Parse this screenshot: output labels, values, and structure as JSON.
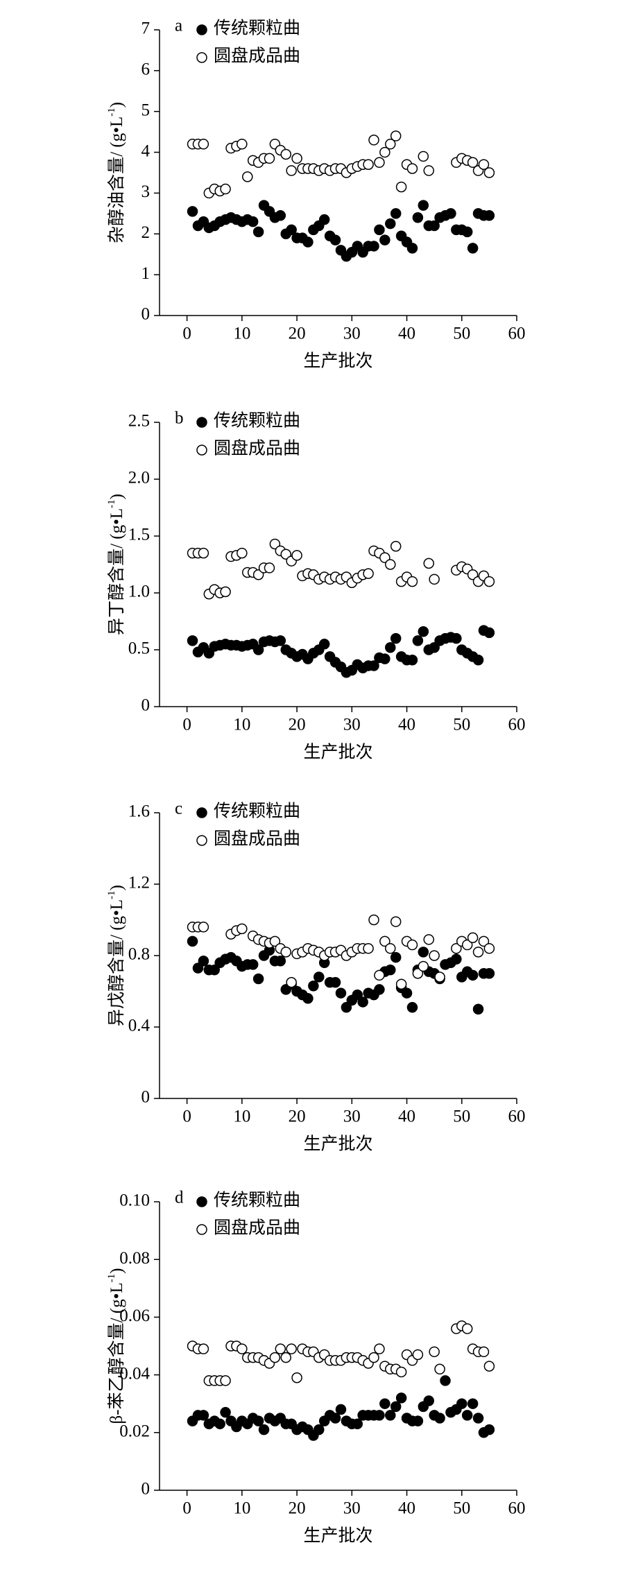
{
  "chart_data": [
    {
      "type": "scatter",
      "label": "a",
      "xlabel": "生产批次",
      "ylabel": [
        "杂醇油含量/ (g•L",
        "-1",
        ")"
      ],
      "xlim": [
        -5,
        60
      ],
      "xticks": [
        0,
        10,
        20,
        30,
        40,
        50,
        60
      ],
      "ylim": [
        0,
        7
      ],
      "yticks": [
        0,
        1,
        2,
        3,
        4,
        5,
        6,
        7
      ],
      "x": [
        1,
        2,
        3,
        4,
        5,
        6,
        7,
        8,
        9,
        10,
        11,
        12,
        13,
        14,
        15,
        16,
        17,
        18,
        19,
        20,
        21,
        22,
        23,
        24,
        25,
        26,
        27,
        28,
        29,
        30,
        31,
        32,
        33,
        34,
        35,
        36,
        37,
        38,
        39,
        40,
        41,
        42,
        43,
        44,
        45,
        46,
        47,
        48,
        49,
        50,
        51,
        52,
        53,
        54,
        55
      ],
      "series": [
        {
          "name": "传统颗粒曲",
          "color": "#000000",
          "marker": "filled",
          "values": [
            2.55,
            2.2,
            2.3,
            2.15,
            2.2,
            2.3,
            2.35,
            2.4,
            2.35,
            2.3,
            2.35,
            2.3,
            2.05,
            2.7,
            2.55,
            2.4,
            2.45,
            2.0,
            2.1,
            1.9,
            1.9,
            1.8,
            2.1,
            2.2,
            2.35,
            1.95,
            1.85,
            1.6,
            1.45,
            1.55,
            1.7,
            1.55,
            1.7,
            1.7,
            2.1,
            1.85,
            2.25,
            2.5,
            1.95,
            1.8,
            1.65,
            2.4,
            2.7,
            2.2,
            2.2,
            2.4,
            2.45,
            2.5,
            2.1,
            2.1,
            2.05,
            1.65,
            2.5,
            2.45,
            2.45
          ]
        },
        {
          "name": "圆盘成品曲",
          "color": "#000000",
          "marker": "open",
          "values": [
            4.2,
            4.2,
            4.2,
            3.0,
            3.1,
            3.05,
            3.1,
            4.1,
            4.15,
            4.2,
            3.4,
            3.8,
            3.75,
            3.85,
            3.85,
            4.2,
            4.05,
            3.95,
            3.55,
            3.85,
            3.6,
            3.6,
            3.6,
            3.55,
            3.6,
            3.55,
            3.6,
            3.6,
            3.5,
            3.6,
            3.65,
            3.7,
            3.7,
            4.3,
            3.75,
            4.0,
            4.2,
            4.4,
            3.15,
            3.7,
            3.6,
            null,
            3.9,
            3.55,
            null,
            null,
            null,
            null,
            3.75,
            3.85,
            3.8,
            3.75,
            3.55,
            3.7,
            3.5
          ]
        }
      ]
    },
    {
      "type": "scatter",
      "label": "b",
      "xlabel": "生产批次",
      "ylabel": [
        "异丁醇含量/ (g•L",
        "-1",
        ")"
      ],
      "xlim": [
        -5,
        60
      ],
      "xticks": [
        0,
        10,
        20,
        30,
        40,
        50,
        60
      ],
      "ylim": [
        0,
        2.5
      ],
      "yticks": [
        0,
        0.5,
        {
          "value": 1,
          "label": "1.0"
        },
        1.5,
        {
          "value": 2,
          "label": "2.0"
        },
        2.5
      ],
      "x": [
        1,
        2,
        3,
        4,
        5,
        6,
        7,
        8,
        9,
        10,
        11,
        12,
        13,
        14,
        15,
        16,
        17,
        18,
        19,
        20,
        21,
        22,
        23,
        24,
        25,
        26,
        27,
        28,
        29,
        30,
        31,
        32,
        33,
        34,
        35,
        36,
        37,
        38,
        39,
        40,
        41,
        42,
        43,
        44,
        45,
        46,
        47,
        48,
        49,
        50,
        51,
        52,
        53,
        54,
        55
      ],
      "series": [
        {
          "name": "传统颗粒曲",
          "color": "#000000",
          "marker": "filled",
          "values": [
            0.58,
            0.48,
            0.52,
            0.47,
            0.53,
            0.54,
            0.55,
            0.54,
            0.54,
            0.53,
            0.54,
            0.55,
            0.5,
            0.57,
            0.58,
            0.57,
            0.58,
            0.5,
            0.47,
            0.44,
            0.46,
            0.42,
            0.47,
            0.5,
            0.55,
            0.44,
            0.39,
            0.35,
            0.3,
            0.32,
            0.37,
            0.34,
            0.36,
            0.36,
            0.43,
            0.42,
            0.52,
            0.6,
            0.44,
            0.41,
            0.41,
            0.58,
            0.66,
            0.5,
            0.52,
            0.58,
            0.6,
            0.61,
            0.6,
            0.5,
            0.47,
            0.44,
            0.41,
            0.67,
            0.65
          ]
        },
        {
          "name": "圆盘成品曲",
          "color": "#000000",
          "marker": "open",
          "values": [
            1.35,
            1.35,
            1.35,
            0.99,
            1.03,
            1.0,
            1.01,
            1.32,
            1.33,
            1.35,
            1.18,
            1.18,
            1.16,
            1.22,
            1.22,
            1.43,
            1.37,
            1.34,
            1.28,
            1.33,
            1.15,
            1.17,
            1.16,
            1.12,
            1.14,
            1.12,
            1.14,
            1.12,
            1.14,
            1.09,
            1.13,
            1.16,
            1.17,
            1.37,
            1.35,
            1.31,
            1.25,
            1.41,
            1.1,
            1.14,
            1.1,
            null,
            null,
            1.26,
            1.12,
            null,
            null,
            null,
            1.2,
            1.23,
            1.21,
            1.16,
            1.1,
            1.15,
            1.1
          ]
        }
      ]
    },
    {
      "type": "scatter",
      "label": "c",
      "xlabel": "生产批次",
      "ylabel": [
        "异戊醇含量/ (g•L",
        "-1",
        ")"
      ],
      "xlim": [
        -5,
        60
      ],
      "xticks": [
        0,
        10,
        20,
        30,
        40,
        50,
        60
      ],
      "ylim": [
        0,
        1.6
      ],
      "yticks": [
        0,
        0.4,
        0.8,
        1.2,
        1.6
      ],
      "x": [
        1,
        2,
        3,
        4,
        5,
        6,
        7,
        8,
        9,
        10,
        11,
        12,
        13,
        14,
        15,
        16,
        17,
        18,
        19,
        20,
        21,
        22,
        23,
        24,
        25,
        26,
        27,
        28,
        29,
        30,
        31,
        32,
        33,
        34,
        35,
        36,
        37,
        38,
        39,
        40,
        41,
        42,
        43,
        44,
        45,
        46,
        47,
        48,
        49,
        50,
        51,
        52,
        53,
        54,
        55
      ],
      "series": [
        {
          "name": "传统颗粒曲",
          "color": "#000000",
          "marker": "filled",
          "values": [
            0.88,
            0.73,
            0.77,
            0.72,
            0.72,
            0.76,
            0.78,
            0.79,
            0.77,
            0.74,
            0.75,
            0.75,
            0.67,
            0.8,
            0.83,
            0.77,
            0.77,
            0.61,
            0.64,
            0.6,
            0.58,
            0.56,
            0.63,
            0.68,
            0.76,
            0.65,
            0.65,
            0.59,
            0.51,
            0.55,
            0.58,
            0.54,
            0.59,
            0.58,
            0.61,
            0.71,
            0.72,
            0.79,
            0.62,
            0.59,
            0.51,
            0.72,
            0.82,
            0.71,
            0.7,
            0.67,
            0.75,
            0.76,
            0.78,
            0.68,
            0.71,
            0.69,
            0.5,
            0.7,
            0.7
          ]
        },
        {
          "name": "圆盘成品曲",
          "color": "#000000",
          "marker": "open",
          "values": [
            0.96,
            0.96,
            0.96,
            null,
            null,
            null,
            null,
            0.92,
            0.94,
            0.95,
            null,
            0.91,
            0.89,
            0.88,
            0.87,
            0.88,
            0.84,
            0.82,
            0.65,
            0.81,
            0.82,
            0.84,
            0.83,
            0.82,
            0.8,
            0.82,
            0.82,
            0.83,
            0.8,
            0.82,
            0.84,
            0.84,
            0.84,
            1.0,
            0.69,
            0.88,
            0.84,
            0.99,
            0.64,
            0.88,
            0.86,
            0.7,
            0.74,
            0.89,
            0.8,
            0.68,
            null,
            null,
            0.84,
            0.88,
            0.86,
            0.9,
            0.82,
            0.88,
            0.84
          ]
        }
      ]
    },
    {
      "type": "scatter",
      "label": "d",
      "xlabel": "生产批次",
      "ylabel": [
        "β-苯乙醇含量/ (g•L",
        "-1",
        ")"
      ],
      "xlim": [
        -5,
        60
      ],
      "xticks": [
        0,
        10,
        20,
        30,
        40,
        50,
        60
      ],
      "ylim": [
        0,
        0.1
      ],
      "yticks": [
        0,
        0.02,
        0.04,
        0.06,
        0.08,
        {
          "value": 0.1,
          "label": "0.10"
        }
      ],
      "x": [
        1,
        2,
        3,
        4,
        5,
        6,
        7,
        8,
        9,
        10,
        11,
        12,
        13,
        14,
        15,
        16,
        17,
        18,
        19,
        20,
        21,
        22,
        23,
        24,
        25,
        26,
        27,
        28,
        29,
        30,
        31,
        32,
        33,
        34,
        35,
        36,
        37,
        38,
        39,
        40,
        41,
        42,
        43,
        44,
        45,
        46,
        47,
        48,
        49,
        50,
        51,
        52,
        53,
        54,
        55
      ],
      "series": [
        {
          "name": "传统颗粒曲",
          "color": "#000000",
          "marker": "filled",
          "values": [
            0.024,
            0.026,
            0.026,
            0.023,
            0.024,
            0.023,
            0.027,
            0.024,
            0.022,
            0.024,
            0.023,
            0.025,
            0.024,
            0.021,
            0.025,
            0.024,
            0.025,
            0.023,
            0.023,
            0.021,
            0.022,
            0.021,
            0.019,
            0.021,
            0.024,
            0.026,
            0.025,
            0.028,
            0.024,
            0.023,
            0.023,
            0.026,
            0.026,
            0.026,
            0.026,
            0.03,
            0.026,
            0.029,
            0.032,
            0.025,
            0.024,
            0.024,
            0.029,
            0.031,
            0.026,
            0.025,
            0.038,
            0.027,
            0.028,
            0.03,
            0.026,
            0.03,
            0.025,
            0.02,
            0.021
          ]
        },
        {
          "name": "圆盘成品曲",
          "color": "#000000",
          "marker": "open",
          "values": [
            0.05,
            0.049,
            0.049,
            0.038,
            0.038,
            0.038,
            0.038,
            0.05,
            0.05,
            0.049,
            0.046,
            0.046,
            0.046,
            0.045,
            0.044,
            0.046,
            0.049,
            0.046,
            0.049,
            0.039,
            0.049,
            0.048,
            0.048,
            0.046,
            0.047,
            0.045,
            0.045,
            0.045,
            0.046,
            0.046,
            0.046,
            0.045,
            0.044,
            0.046,
            0.049,
            0.043,
            0.042,
            0.042,
            0.041,
            0.047,
            0.045,
            0.047,
            null,
            null,
            0.048,
            0.042,
            null,
            null,
            0.056,
            0.057,
            0.056,
            0.049,
            0.048,
            0.048,
            0.043
          ]
        }
      ]
    }
  ]
}
